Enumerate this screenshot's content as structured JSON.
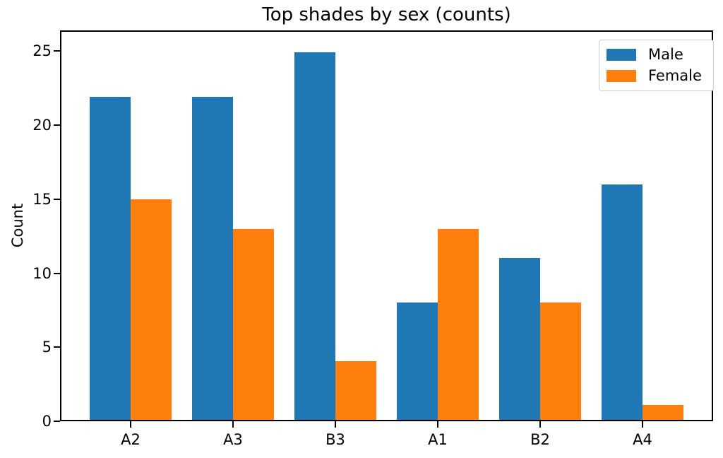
{
  "chart_data": {
    "type": "bar",
    "title": "Top shades by sex (counts)",
    "xlabel": "",
    "ylabel": "Count",
    "categories": [
      "A2",
      "A3",
      "B3",
      "A1",
      "B2",
      "A4"
    ],
    "series": [
      {
        "name": "Male",
        "color": "#1f77b4",
        "values": [
          22,
          22,
          25,
          8,
          11,
          16
        ]
      },
      {
        "name": "Female",
        "color": "#ff7f0e",
        "values": [
          15,
          13,
          4,
          13,
          8,
          1
        ]
      }
    ],
    "yticks": [
      0,
      5,
      10,
      15,
      20,
      25
    ],
    "ylim": [
      0,
      26.4
    ],
    "bar_group_width_units": 0.8,
    "legend_position": "upper right",
    "grid": false,
    "colors": {
      "axes": "#000000",
      "background": "#ffffff",
      "legend_border": "#cccccc"
    }
  }
}
